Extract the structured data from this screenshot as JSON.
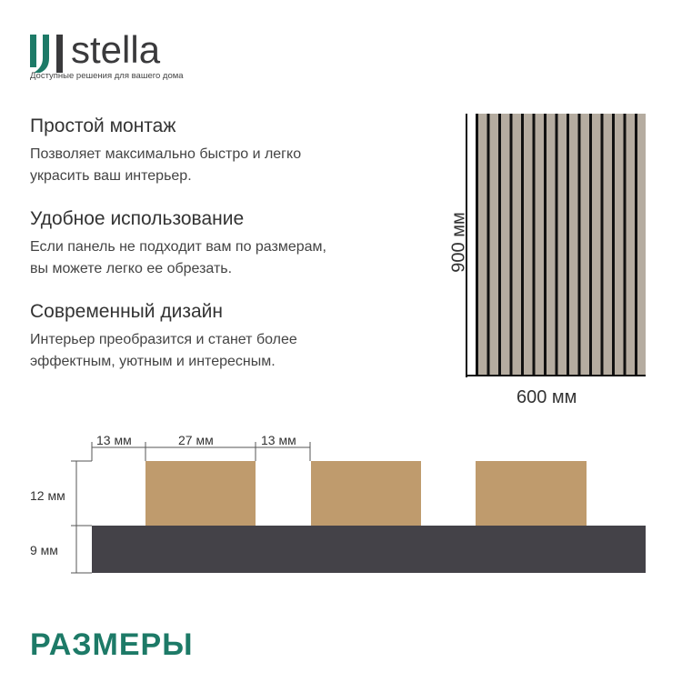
{
  "brand": {
    "name": "stella",
    "tagline": "Доступные решения для вашего дома",
    "color": "#1d7a67"
  },
  "features": [
    {
      "title": "Простой монтаж",
      "text": [
        "Позволяет максимально быстро и легко",
        "украсить ваш интерьер."
      ]
    },
    {
      "title": "Удобное использование",
      "text": [
        "Если панель не подходит вам по размерам,",
        "вы можете легко ее обрезать."
      ]
    },
    {
      "title": "Современный дизайн",
      "text": [
        "Интерьер преобразится и станет более",
        "эффектным, уютным и интересным."
      ]
    }
  ],
  "panel": {
    "height_label": "900 мм",
    "width_label": "600 мм",
    "slat_color": "#b5aca0",
    "groove_color": "#111111"
  },
  "profile": {
    "gap1_label": "13 мм",
    "slat_width_label": "27 мм",
    "gap2_label": "13 мм",
    "slat_height_label": "12 мм",
    "base_height_label": "9 мм",
    "slat_color": "#bf9b6d",
    "base_color": "#444248"
  },
  "section_title": "РАЗМЕРЫ"
}
